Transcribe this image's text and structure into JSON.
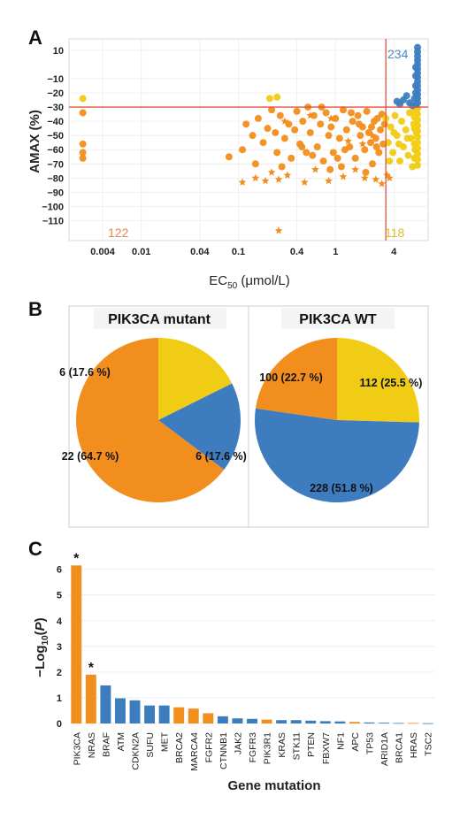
{
  "colors": {
    "orange": "#F28E1E",
    "yellow": "#F0CC14",
    "blue": "#3D7DBF",
    "red_line": "#E0533A",
    "count_orange": "#E8874A",
    "count_yellow": "#D9C020",
    "count_blue": "#4A86C4"
  },
  "chart_data": [
    {
      "panel": "A",
      "type": "scatter",
      "xlabel_main": "EC",
      "xlabel_sub": "50",
      "xlabel_unit": " (μmol/L)",
      "ylabel": "AMAX (%)",
      "x_scale": "log",
      "x_ticks": [
        {
          "v": 0.004,
          "label": "0.004"
        },
        {
          "v": 0.01,
          "label": "0.01"
        },
        {
          "v": 0.04,
          "label": "0.04"
        },
        {
          "v": 0.1,
          "label": "0.1"
        },
        {
          "v": 0.4,
          "label": "0.4"
        },
        {
          "v": 1,
          "label": "1"
        },
        {
          "v": 4,
          "label": "4"
        }
      ],
      "y_ticks": [
        {
          "v": 10,
          "label": "10"
        },
        {
          "v": -10,
          "label": "−10"
        },
        {
          "v": -20,
          "label": "−20"
        },
        {
          "v": -30,
          "label": "−30"
        },
        {
          "v": -40,
          "label": "−40"
        },
        {
          "v": -50,
          "label": "−50"
        },
        {
          "v": -60,
          "label": "−60"
        },
        {
          "v": -70,
          "label": "−70"
        },
        {
          "v": -80,
          "label": "−80"
        },
        {
          "v": -90,
          "label": "−90"
        },
        {
          "v": -100,
          "label": "−100"
        },
        {
          "v": -110,
          "label": "−110"
        }
      ],
      "thresholds": {
        "x": 3.3,
        "y": -30
      },
      "counts": {
        "orange": "122",
        "yellow": "118",
        "blue": "234"
      },
      "series": [
        {
          "color": "orange",
          "marker": "circle",
          "points": [
            [
              0.0025,
              -34
            ],
            [
              0.0025,
              -56
            ],
            [
              0.0025,
              -62
            ],
            [
              0.0025,
              -66
            ],
            [
              0.08,
              -65
            ],
            [
              0.11,
              -60
            ],
            [
              0.12,
              -42
            ],
            [
              0.14,
              -50
            ],
            [
              0.16,
              -38
            ],
            [
              0.18,
              -55
            ],
            [
              0.2,
              -45
            ],
            [
              0.22,
              -32
            ],
            [
              0.24,
              -48
            ],
            [
              0.25,
              -62
            ],
            [
              0.27,
              -36
            ],
            [
              0.3,
              -52
            ],
            [
              0.33,
              -42
            ],
            [
              0.35,
              -66
            ],
            [
              0.38,
              -46
            ],
            [
              0.4,
              -33
            ],
            [
              0.43,
              -56
            ],
            [
              0.46,
              -40
            ],
            [
              0.5,
              -62
            ],
            [
              0.52,
              -30
            ],
            [
              0.55,
              -48
            ],
            [
              0.6,
              -36
            ],
            [
              0.65,
              -58
            ],
            [
              0.7,
              -42
            ],
            [
              0.75,
              -68
            ],
            [
              0.8,
              -34
            ],
            [
              0.85,
              -50
            ],
            [
              0.9,
              -44
            ],
            [
              0.95,
              -62
            ],
            [
              1.0,
              -38
            ],
            [
              1.1,
              -52
            ],
            [
              1.15,
              -72
            ],
            [
              1.2,
              -32
            ],
            [
              1.3,
              -46
            ],
            [
              1.4,
              -58
            ],
            [
              1.5,
              -40
            ],
            [
              1.6,
              -66
            ],
            [
              1.7,
              -36
            ],
            [
              1.8,
              -50
            ],
            [
              1.9,
              -44
            ],
            [
              2.0,
              -60
            ],
            [
              2.1,
              -33
            ],
            [
              2.2,
              -48
            ],
            [
              2.3,
              -55
            ],
            [
              2.4,
              -70
            ],
            [
              2.5,
              -40
            ],
            [
              2.6,
              -52
            ],
            [
              2.7,
              -38
            ],
            [
              2.8,
              -62
            ],
            [
              2.9,
              -46
            ],
            [
              3.0,
              -35
            ],
            [
              3.1,
              -56
            ],
            [
              3.2,
              -42
            ],
            [
              0.15,
              -70
            ],
            [
              0.28,
              -72
            ],
            [
              0.45,
              -58
            ],
            [
              0.58,
              -64
            ],
            [
              0.72,
              -30
            ],
            [
              0.88,
              -74
            ],
            [
              1.05,
              -66
            ],
            [
              1.25,
              -60
            ],
            [
              1.45,
              -34
            ],
            [
              1.75,
              -42
            ],
            [
              2.05,
              -76
            ],
            [
              2.35,
              -44
            ],
            [
              2.65,
              -58
            ]
          ]
        },
        {
          "color": "orange",
          "marker": "star",
          "points": [
            [
              0.11,
              -83
            ],
            [
              0.15,
              -80
            ],
            [
              0.19,
              -82
            ],
            [
              0.22,
              -76
            ],
            [
              0.26,
              -81
            ],
            [
              0.26,
              -117
            ],
            [
              0.32,
              -78
            ],
            [
              0.48,
              -83
            ],
            [
              0.62,
              -74
            ],
            [
              0.85,
              -82
            ],
            [
              1.2,
              -79
            ],
            [
              1.6,
              -74
            ],
            [
              2.0,
              -80
            ],
            [
              2.6,
              -81
            ],
            [
              3.0,
              -84
            ],
            [
              3.4,
              -78
            ],
            [
              3.6,
              -80
            ],
            [
              0.3,
              -40
            ],
            [
              0.55,
              -36
            ],
            [
              1.35,
              -54
            ],
            [
              1.9,
              -56
            ],
            [
              2.4,
              -50
            ],
            [
              0.9,
              -38
            ]
          ]
        },
        {
          "color": "yellow",
          "marker": "circle",
          "points": [
            [
              0.0025,
              -24
            ],
            [
              0.21,
              -24
            ],
            [
              0.25,
              -23
            ],
            [
              3.3,
              -38
            ],
            [
              3.5,
              -55
            ],
            [
              3.7,
              -44
            ],
            [
              3.9,
              -62
            ],
            [
              4.1,
              -36
            ],
            [
              4.3,
              -50
            ],
            [
              4.6,
              -68
            ],
            [
              4.8,
              -40
            ],
            [
              5.0,
              -58
            ],
            [
              5.3,
              -46
            ],
            [
              5.6,
              -64
            ],
            [
              5.8,
              -34
            ],
            [
              6.0,
              -52
            ],
            [
              6.2,
              -72
            ],
            [
              6.4,
              -42
            ],
            [
              6.6,
              -60
            ],
            [
              6.8,
              -48
            ],
            [
              7.0,
              -31
            ],
            [
              7.0,
              -35
            ],
            [
              7.0,
              -39
            ],
            [
              7.0,
              -43
            ],
            [
              7.0,
              -47
            ],
            [
              7.0,
              -51
            ],
            [
              7.0,
              -55
            ],
            [
              7.0,
              -59
            ],
            [
              7.0,
              -63
            ],
            [
              7.0,
              -67
            ],
            [
              7.0,
              -71
            ],
            [
              6.5,
              -33
            ],
            [
              6.5,
              -37
            ],
            [
              6.5,
              -45
            ],
            [
              6.5,
              -56
            ],
            [
              6.5,
              -66
            ],
            [
              4.5,
              -56
            ],
            [
              5.5,
              -52
            ],
            [
              3.6,
              -68
            ],
            [
              4.0,
              -48
            ]
          ]
        },
        {
          "color": "blue",
          "marker": "circle",
          "points": [
            [
              4.3,
              -26
            ],
            [
              4.6,
              -28
            ],
            [
              5.0,
              -25
            ],
            [
              5.4,
              -22
            ],
            [
              5.8,
              -27
            ],
            [
              6.2,
              -29
            ],
            [
              6.5,
              -24
            ],
            [
              6.8,
              -28
            ],
            [
              7.0,
              12
            ],
            [
              7.0,
              9
            ],
            [
              7.0,
              6
            ],
            [
              7.0,
              3
            ],
            [
              7.0,
              0
            ],
            [
              7.0,
              -3
            ],
            [
              7.0,
              -6
            ],
            [
              7.0,
              -9
            ],
            [
              7.0,
              -12
            ],
            [
              7.0,
              -15
            ],
            [
              7.0,
              -18
            ],
            [
              7.0,
              -21
            ],
            [
              7.0,
              -24
            ],
            [
              7.0,
              -27
            ],
            [
              6.7,
              -15
            ],
            [
              6.7,
              -8
            ],
            [
              6.7,
              -2
            ],
            [
              6.7,
              -20
            ]
          ]
        }
      ]
    },
    {
      "panel": "B",
      "type": "pie",
      "charts": [
        {
          "title": "PIK3CA mutant",
          "slices": [
            {
              "value": 6,
              "label": "6 (17.6 %)",
              "color": "yellow"
            },
            {
              "value": 6,
              "label": "6 (17.6 %)",
              "color": "blue"
            },
            {
              "value": 22,
              "label": "22 (64.7 %)",
              "color": "orange"
            }
          ]
        },
        {
          "title": "PIK3CA WT",
          "slices": [
            {
              "value": 112,
              "label": "112 (25.5 %)",
              "color": "yellow"
            },
            {
              "value": 228,
              "label": "228 (51.8 %)",
              "color": "blue"
            },
            {
              "value": 100,
              "label": "100 (22.7 %)",
              "color": "orange"
            }
          ]
        }
      ]
    },
    {
      "panel": "C",
      "type": "bar",
      "xlabel": "Gene mutation",
      "ylabel_pre": "−Log",
      "ylabel_sub": "10",
      "ylabel_open": "(",
      "ylabel_var": "P",
      "ylabel_close": ")",
      "ylim": [
        0,
        6.4
      ],
      "y_ticks": [
        "0",
        "1",
        "2",
        "3",
        "4",
        "5",
        "6"
      ],
      "categories": [
        "PIK3CA",
        "NRAS",
        "BRAF",
        "ATM",
        "CDKN2A",
        "SUFU",
        "MET",
        "BRCA2",
        "MARCA4",
        "FGFR2",
        "CTNNB1",
        "JAK2",
        "FGFR3",
        "PIK3R1",
        "KRAS",
        "STK11",
        "PTEN",
        "FBXW7",
        "NF1",
        "APC",
        "TP53",
        "ARID1A",
        "BRCA1",
        "HRAS",
        "TSC2"
      ],
      "values": [
        6.15,
        1.9,
        1.48,
        0.98,
        0.9,
        0.7,
        0.7,
        0.63,
        0.58,
        0.4,
        0.28,
        0.2,
        0.18,
        0.15,
        0.13,
        0.13,
        0.11,
        0.09,
        0.08,
        0.06,
        0.04,
        0.03,
        0.02,
        0.02,
        0.01
      ],
      "bar_colors": [
        "orange",
        "orange",
        "blue",
        "blue",
        "blue",
        "blue",
        "blue",
        "orange",
        "orange",
        "orange",
        "blue",
        "blue",
        "blue",
        "orange",
        "blue",
        "blue",
        "blue",
        "blue",
        "blue",
        "orange",
        "blue",
        "blue",
        "blue",
        "orange",
        "blue"
      ],
      "significance_marker": "*",
      "significant": [
        0,
        1
      ]
    }
  ],
  "panel_letters": {
    "a": "A",
    "b": "B",
    "c": "C"
  }
}
